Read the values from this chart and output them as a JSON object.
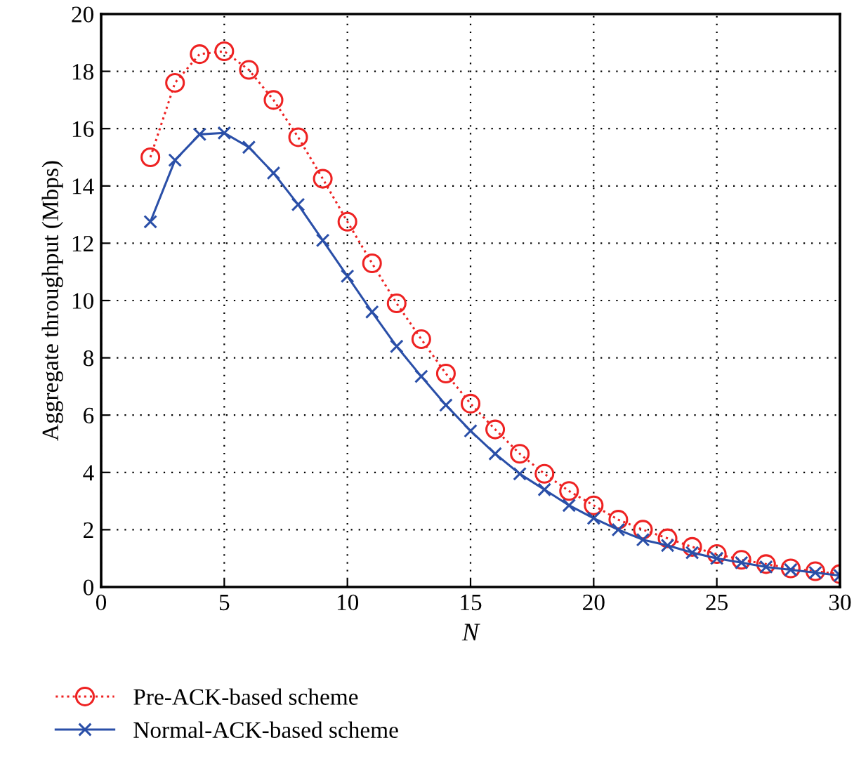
{
  "chart_data": {
    "type": "line",
    "xlabel": "N",
    "ylabel": "Aggregate throughput (Mbps)",
    "x": [
      2,
      3,
      4,
      5,
      6,
      7,
      8,
      9,
      10,
      11,
      12,
      13,
      14,
      15,
      16,
      17,
      18,
      19,
      20,
      21,
      22,
      23,
      24,
      25,
      26,
      27,
      28,
      29,
      30
    ],
    "series": [
      {
        "name": "Pre-ACK-based scheme",
        "color": "#ee2222",
        "marker": "circle",
        "line_style": "dotted",
        "values": [
          15.0,
          17.6,
          18.6,
          18.7,
          18.05,
          17.0,
          15.7,
          14.25,
          12.75,
          11.3,
          9.9,
          8.65,
          7.45,
          6.4,
          5.5,
          4.65,
          3.95,
          3.35,
          2.85,
          2.35,
          2.0,
          1.7,
          1.4,
          1.15,
          0.95,
          0.8,
          0.65,
          0.55,
          0.45
        ]
      },
      {
        "name": "Normal-ACK-based scheme",
        "color": "#2a4fa8",
        "marker": "cross",
        "line_style": "solid",
        "values": [
          12.75,
          14.9,
          15.8,
          15.85,
          15.35,
          14.45,
          13.35,
          12.1,
          10.85,
          9.6,
          8.4,
          7.35,
          6.35,
          5.45,
          4.65,
          3.95,
          3.4,
          2.85,
          2.4,
          2.0,
          1.65,
          1.45,
          1.2,
          1.0,
          0.85,
          0.7,
          0.6,
          0.5,
          0.4
        ]
      }
    ],
    "xlim": [
      0,
      30
    ],
    "xticks": [
      0,
      5,
      10,
      15,
      20,
      25,
      30
    ],
    "ylim": [
      0,
      20
    ],
    "yticks": [
      0,
      2,
      4,
      6,
      8,
      10,
      12,
      14,
      16,
      18,
      20
    ],
    "grid": true,
    "legend": "bottom left"
  }
}
